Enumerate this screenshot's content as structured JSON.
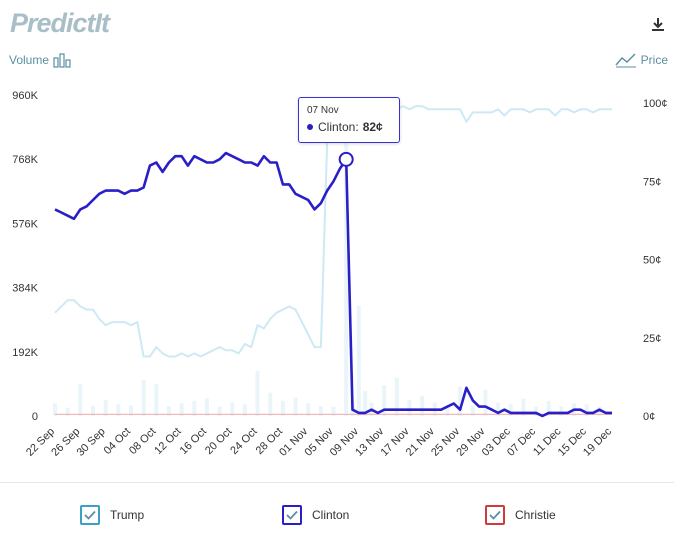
{
  "header": {
    "logo_text": "PredictIt"
  },
  "toggles": {
    "volume_label": "Volume",
    "price_label": "Price"
  },
  "tooltip": {
    "date": "07 Nov",
    "candidate": "Clinton:",
    "value": "82¢"
  },
  "legend": [
    {
      "label": "Trump",
      "color": "#3aa0c7"
    },
    {
      "label": "Clinton",
      "color": "#2a1fc7"
    },
    {
      "label": "Christie",
      "color": "#d03a3a"
    }
  ],
  "chart_data": {
    "type": "line",
    "title": "",
    "x_ticks": [
      "22 Sep",
      "26 Sep",
      "30 Sep",
      "04 Oct",
      "08 Oct",
      "12 Oct",
      "16 Oct",
      "20 Oct",
      "24 Oct",
      "28 Oct",
      "01 Nov",
      "05 Nov",
      "09 Nov",
      "13 Nov",
      "17 Nov",
      "21 Nov",
      "25 Nov",
      "29 Nov",
      "03 Dec",
      "07 Dec",
      "11 Dec",
      "15 Dec",
      "19 Dec"
    ],
    "y_left": {
      "label": "Volume",
      "ticks": [
        "0",
        "192K",
        "384K",
        "576K",
        "768K",
        "960K"
      ],
      "ylim": [
        0,
        960000
      ]
    },
    "y_right": {
      "label": "Price",
      "ticks": [
        "0¢",
        "25¢",
        "50¢",
        "75¢",
        "100¢"
      ],
      "ylim": [
        0,
        100
      ]
    },
    "series": [
      {
        "name": "Clinton",
        "color": "#2a1fc7",
        "x": [
          0,
          1,
          2,
          3,
          4,
          5,
          6,
          7,
          8,
          9,
          10,
          11,
          12,
          13,
          14,
          15,
          16,
          17,
          18,
          19,
          20,
          21,
          22,
          23,
          24,
          25,
          26,
          27,
          28,
          29,
          30,
          31,
          32,
          33,
          34,
          35,
          36,
          37,
          38,
          39,
          40,
          41,
          42,
          43,
          44,
          45,
          46,
          47,
          48,
          49,
          50,
          51,
          52,
          53,
          54,
          55,
          56,
          57,
          58,
          59,
          60,
          61,
          62,
          63,
          64,
          65,
          66,
          67,
          68,
          69,
          70,
          71,
          72,
          73,
          74,
          75,
          76,
          77,
          78,
          79,
          80,
          81,
          82,
          83,
          84,
          85,
          86,
          87,
          88
        ],
        "values": [
          66,
          65,
          64,
          63,
          66,
          67,
          69,
          71,
          72,
          72,
          72,
          71,
          72,
          72,
          73,
          80,
          81,
          78,
          81,
          83,
          83,
          80,
          83,
          82,
          81,
          81,
          82,
          84,
          83,
          82,
          81,
          81,
          80,
          83,
          81,
          81,
          74,
          74,
          71,
          70,
          69,
          66,
          68,
          72,
          75,
          79,
          82,
          2,
          1,
          1,
          2,
          1,
          2,
          2,
          2,
          2,
          2,
          2,
          2,
          2,
          2,
          2,
          3,
          4,
          2,
          9,
          5,
          3,
          3,
          2,
          1,
          2,
          1,
          1,
          1,
          1,
          1,
          0,
          1,
          1,
          1,
          1,
          2,
          2,
          1,
          1,
          2,
          1,
          1
        ],
        "highlight": {
          "x": 46,
          "value": 82
        }
      },
      {
        "name": "Trump",
        "color": "#cde9f4",
        "x": [
          0,
          1,
          2,
          3,
          4,
          5,
          6,
          7,
          8,
          9,
          10,
          11,
          12,
          13,
          14,
          15,
          16,
          17,
          18,
          19,
          20,
          21,
          22,
          23,
          24,
          25,
          26,
          27,
          28,
          29,
          30,
          31,
          32,
          33,
          34,
          35,
          36,
          37,
          38,
          39,
          40,
          41,
          42,
          43,
          44,
          45,
          46,
          47,
          48,
          49,
          50,
          51,
          52,
          53,
          54,
          55,
          56,
          57,
          58,
          59,
          60,
          61,
          62,
          63,
          64,
          65,
          66,
          67,
          68,
          69,
          70,
          71,
          72,
          73,
          74,
          75,
          76,
          77,
          78,
          79,
          80,
          81,
          82,
          83,
          84,
          85,
          86,
          87,
          88
        ],
        "values": [
          33,
          35,
          37,
          37,
          35,
          34,
          34,
          31,
          29,
          30,
          30,
          30,
          29,
          30,
          19,
          19,
          22,
          20,
          19,
          19,
          20,
          19,
          20,
          19,
          20,
          21,
          22,
          21,
          21,
          20,
          23,
          22,
          29,
          28,
          31,
          33,
          34,
          35,
          34,
          30,
          26,
          22,
          22,
          88,
          90,
          93,
          96,
          97,
          98,
          98,
          98,
          97,
          97,
          97,
          98,
          99,
          98,
          99,
          99,
          98,
          98,
          98,
          98,
          98,
          98,
          94,
          97,
          97,
          97,
          97,
          98,
          96,
          98,
          98,
          98,
          97,
          98,
          98,
          98,
          96,
          98,
          98,
          97,
          98,
          98,
          97,
          98,
          98,
          98
        ]
      },
      {
        "name": "Christie",
        "color": "#f0b8b8",
        "x": [
          0,
          88
        ],
        "values": [
          0.5,
          0.5
        ]
      }
    ],
    "volume": {
      "x": [
        0,
        2,
        4,
        6,
        8,
        10,
        12,
        14,
        16,
        18,
        20,
        22,
        24,
        26,
        28,
        30,
        32,
        34,
        36,
        38,
        40,
        42,
        44,
        46,
        47,
        48,
        49,
        50,
        52,
        54,
        56,
        58,
        60,
        62,
        64,
        66,
        68,
        70,
        72,
        74,
        76,
        78,
        80,
        82,
        84,
        86
      ],
      "values": [
        38000,
        25000,
        95000,
        30000,
        48000,
        35000,
        32000,
        108000,
        95000,
        30000,
        38000,
        45000,
        52000,
        28000,
        40000,
        35000,
        135000,
        70000,
        45000,
        55000,
        38000,
        30000,
        28000,
        840000,
        45000,
        330000,
        75000,
        40000,
        92000,
        115000,
        48000,
        60000,
        40000,
        32000,
        88000,
        32000,
        78000,
        40000,
        35000,
        52000,
        28000,
        45000,
        30000,
        38000,
        35000,
        28000
      ]
    }
  }
}
